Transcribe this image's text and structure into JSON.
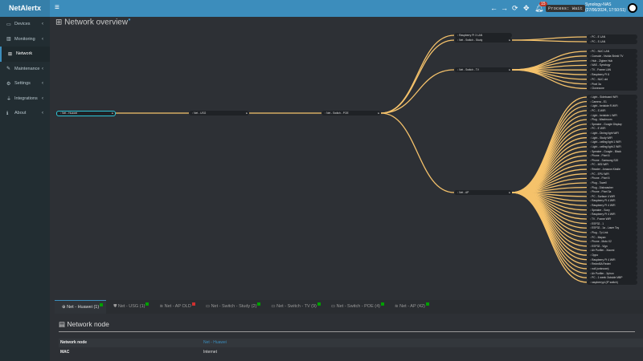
{
  "app": {
    "logo": "NetAlertx",
    "menu_icon": "hamburger-icon"
  },
  "topbar": {
    "notification_count": "15",
    "process": "Process: Wait",
    "host": "Synology-NAS",
    "datetime": "(27/06/2024, 17:50:51)"
  },
  "sidebar": {
    "items": [
      {
        "label": "Devices",
        "icon": "laptop-icon"
      },
      {
        "label": "Monitoring",
        "icon": "chart-icon"
      },
      {
        "label": "Network",
        "icon": "network-icon",
        "active": true
      },
      {
        "label": "Maintenance",
        "icon": "wrench-icon"
      },
      {
        "label": "Settings",
        "icon": "gear-icon"
      },
      {
        "label": "Integrations",
        "icon": "plug-icon"
      },
      {
        "label": "About",
        "icon": "info-icon"
      }
    ]
  },
  "page": {
    "title": "Network overview"
  },
  "colors": {
    "link": "#f5c26b",
    "accent": "#3c8dbc",
    "root_border": "#2ec4d6",
    "online": "#00a000",
    "offline": "#d03030"
  },
  "tree": {
    "label": "Net - Huawei",
    "children": [
      {
        "label": "Net - USG",
        "children": [
          {
            "label": "Net - Switch - POE",
            "children": [
              {
                "label": "Raspberry Pi 3 LAN",
                "children": []
              },
              {
                "label": "Net - Switch - Study",
                "children": [
                  {
                    "label": "PC - E LAN"
                  },
                  {
                    "label": "PC - S LAN"
                  }
                ]
              },
              {
                "label": "Net - Switch - TV",
                "children": [
                  {
                    "label": "PC - NUC LAN"
                  },
                  {
                    "label": "Console - Nvidia Shield TV"
                  },
                  {
                    "label": "Hub - Zigbee Hub"
                  },
                  {
                    "label": "NAS - Synology"
                  },
                  {
                    "label": "TV - Frame LAN"
                  },
                  {
                    "label": "Raspberry Pi 8"
                  },
                  {
                    "label": "PC - NUC old"
                  },
                  {
                    "label": "Pixel 3a"
                  },
                  {
                    "label": "Clonezone"
                  }
                ]
              },
              {
                "label": "Net - AP",
                "children": [
                  {
                    "label": "Light - Sideboard WiFi"
                  },
                  {
                    "label": "Camera - E1"
                  },
                  {
                    "label": "Light - bedside R WiFi"
                  },
                  {
                    "label": "PC - S WiFi"
                  },
                  {
                    "label": "Light - bedside L WiFi"
                  },
                  {
                    "label": "Plug - Washroom"
                  },
                  {
                    "label": "Speaker - Google Display"
                  },
                  {
                    "label": "PC - E WiFi"
                  },
                  {
                    "label": "Light - Dining light WiFi"
                  },
                  {
                    "label": "Light - Study WiFi"
                  },
                  {
                    "label": "Light - ceiling light 1 WiFi"
                  },
                  {
                    "label": "Light - ceiling light 2 WiFi"
                  },
                  {
                    "label": "Speaker - Google - Black"
                  },
                  {
                    "label": "Phone - Pixel 6"
                  },
                  {
                    "label": "Phone - Samsung S20"
                  },
                  {
                    "label": "PC - MSI WiFi"
                  },
                  {
                    "label": "Reader - Amazon Kindle"
                  },
                  {
                    "label": "PC - EPU WiFi"
                  },
                  {
                    "label": "Phone - Pixel 6"
                  },
                  {
                    "label": "Plug - Towell"
                  },
                  {
                    "label": "Plug - Dishwasher"
                  },
                  {
                    "label": "Phone - Pixel 3a"
                  },
                  {
                    "label": "PC - Surface 4 WiFi"
                  },
                  {
                    "label": "Raspberry Pi 4 WiFi"
                  },
                  {
                    "label": "Raspberry Pi 4 WiFi"
                  },
                  {
                    "label": "Speaker - Sony"
                  },
                  {
                    "label": "Raspberry Pi 4 WiFi"
                  },
                  {
                    "label": "TV - Frame WiFi"
                  },
                  {
                    "label": "ESP32 - 1"
                  },
                  {
                    "label": "ESP32 - 1a - Laser Toy"
                  },
                  {
                    "label": "Plug - Tp Link"
                  },
                  {
                    "label": "PC - Mayan"
                  },
                  {
                    "label": "Phone - Moto X2"
                  },
                  {
                    "label": "ESP32 - Vign"
                  },
                  {
                    "label": "Air Purifier - Xiaomi"
                  },
                  {
                    "label": "Oppo"
                  },
                  {
                    "label": "Raspberry Pi 4 WiFi"
                  },
                  {
                    "label": "Redmi5A Redmi"
                  },
                  {
                    "label": "null (unknown)"
                  },
                  {
                    "label": "Air Purifier - Xpiron"
                  },
                  {
                    "label": "PC - 1 week Outside MBP"
                  },
                  {
                    "label": "raspberrypi (IP switch)"
                  }
                ]
              }
            ]
          }
        ]
      }
    ]
  },
  "tabs": [
    {
      "label": "Net - Huawei (1)",
      "icon": "globe-icon",
      "status": "online",
      "active": true
    },
    {
      "label": "Net - USG (1)",
      "icon": "shield-icon",
      "status": "online"
    },
    {
      "label": "Net - AP OLD",
      "icon": "wifi-icon",
      "status": "offline"
    },
    {
      "label": "Net - Switch - Study (2)",
      "icon": "switch-icon",
      "status": "online"
    },
    {
      "label": "Net - Switch - TV (9)",
      "icon": "switch-icon",
      "status": "online"
    },
    {
      "label": "Net - Switch - POE (4)",
      "icon": "switch-icon",
      "status": "online"
    },
    {
      "label": "Net - AP (42)",
      "icon": "wifi-icon",
      "status": "online"
    }
  ],
  "panel": {
    "title": "Network node",
    "rows": [
      {
        "key": "Network node",
        "value": "Net - Huawei",
        "link": true
      },
      {
        "key": "MAC",
        "value": "Internet"
      }
    ]
  }
}
